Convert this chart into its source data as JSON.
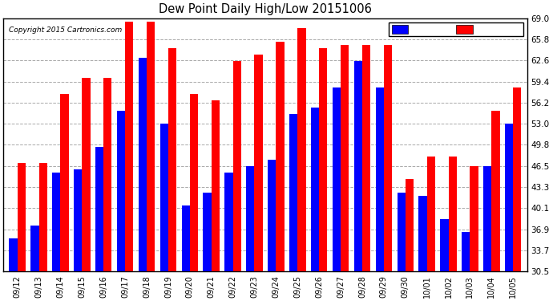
{
  "title": "Dew Point Daily High/Low 20151006",
  "copyright": "Copyright 2015 Cartronics.com",
  "ylim": [
    30.5,
    69.0
  ],
  "yticks": [
    30.5,
    33.7,
    36.9,
    40.1,
    43.3,
    46.5,
    49.8,
    53.0,
    56.2,
    59.4,
    62.6,
    65.8,
    69.0
  ],
  "categories": [
    "09/12",
    "09/13",
    "09/14",
    "09/15",
    "09/16",
    "09/17",
    "09/18",
    "09/19",
    "09/20",
    "09/21",
    "09/22",
    "09/23",
    "09/24",
    "09/25",
    "09/26",
    "09/27",
    "09/28",
    "09/29",
    "09/30",
    "10/01",
    "10/02",
    "10/03",
    "10/04",
    "10/05"
  ],
  "low_values": [
    35.5,
    37.5,
    45.5,
    46.0,
    49.5,
    55.0,
    63.0,
    53.0,
    40.5,
    42.5,
    45.5,
    46.5,
    47.5,
    54.5,
    55.5,
    58.5,
    62.5,
    58.5,
    42.5,
    42.0,
    38.5,
    36.5,
    46.5,
    53.0
  ],
  "high_values": [
    47.0,
    47.0,
    57.5,
    60.0,
    60.0,
    68.5,
    68.5,
    64.5,
    57.5,
    56.5,
    62.5,
    63.5,
    65.5,
    67.5,
    64.5,
    65.0,
    65.0,
    65.0,
    44.5,
    48.0,
    48.0,
    46.5,
    55.0,
    58.5
  ],
  "low_color": "#0000ff",
  "high_color": "#ff0000",
  "bg_color": "#ffffff",
  "grid_color": "#aaaaaa",
  "bar_width": 0.38,
  "ymin": 30.5
}
